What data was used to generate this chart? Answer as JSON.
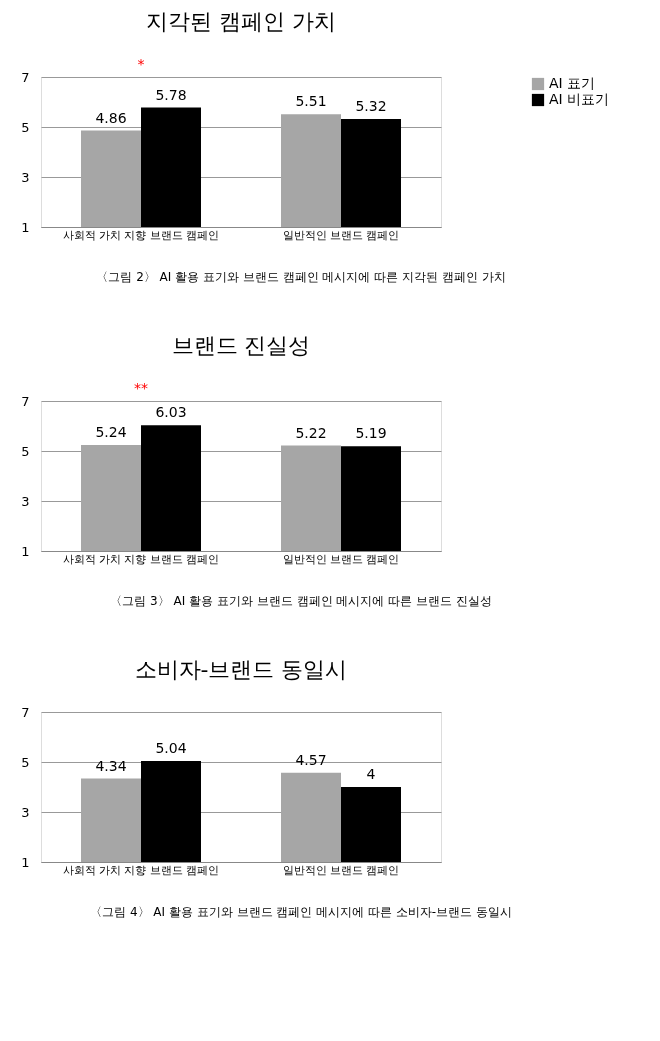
{
  "chart_data": [
    {
      "type": "bar",
      "title": "지각된 캠페인 가치",
      "categories": [
        "사회적 가치 지향 브랜드 캠페인",
        "일반적인 브랜드 캠페인"
      ],
      "series": [
        {
          "name": "AI 표기",
          "color": "#a6a6a6",
          "values": [
            4.86,
            5.51
          ]
        },
        {
          "name": "AI 비표기",
          "color": "#000000",
          "values": [
            5.78,
            5.32
          ]
        }
      ],
      "ylim": [
        1,
        7
      ],
      "yticks": [
        1,
        3,
        5,
        7
      ],
      "grid": "y",
      "legend": "right",
      "data_labels": true,
      "annotations": [
        "*",
        "〈그림 2〉 AI 활용 표기와 브랜드 캠페인 메시지에 따른 지각된 캠페인 가치"
      ]
    },
    {
      "type": "bar",
      "title": "브랜드 진실성",
      "categories": [
        "사회적 가치 지향 브랜드 캠페인",
        "일반적인 브랜드 캠페인"
      ],
      "series": [
        {
          "name": "AI 표기",
          "color": "#a6a6a6",
          "values": [
            5.24,
            5.22
          ]
        },
        {
          "name": "AI 비표기",
          "color": "#000000",
          "values": [
            6.03,
            5.19
          ]
        }
      ],
      "ylim": [
        1,
        7
      ],
      "yticks": [
        1,
        3,
        5,
        7
      ],
      "grid": "y",
      "legend": "right",
      "data_labels": true,
      "annotations": [
        "**",
        "〈그림 3〉 AI 활용 표기와 브랜드 캠페인 메시지에 따른 브랜드 진실성"
      ]
    },
    {
      "type": "bar",
      "title": "소비자-브랜드 동일시",
      "categories": [
        "사회적 가치 지향 브랜드 캠페인",
        "일반적인 브랜드 캠페인"
      ],
      "series": [
        {
          "name": "AI 표기",
          "color": "#a6a6a6",
          "values": [
            4.34,
            4.57
          ]
        },
        {
          "name": "AI 비표기",
          "color": "#000000",
          "values": [
            5.04,
            4
          ]
        }
      ],
      "ylim": [
        1,
        7
      ],
      "yticks": [
        1,
        3,
        5,
        7
      ],
      "grid": "y",
      "legend": "right",
      "data_labels": true,
      "annotations": [
        "〈그림 4〉 AI 활용 표기와 브랜드 캠페인 메시지에 따른 소비자-브랜드 동일시"
      ]
    }
  ]
}
